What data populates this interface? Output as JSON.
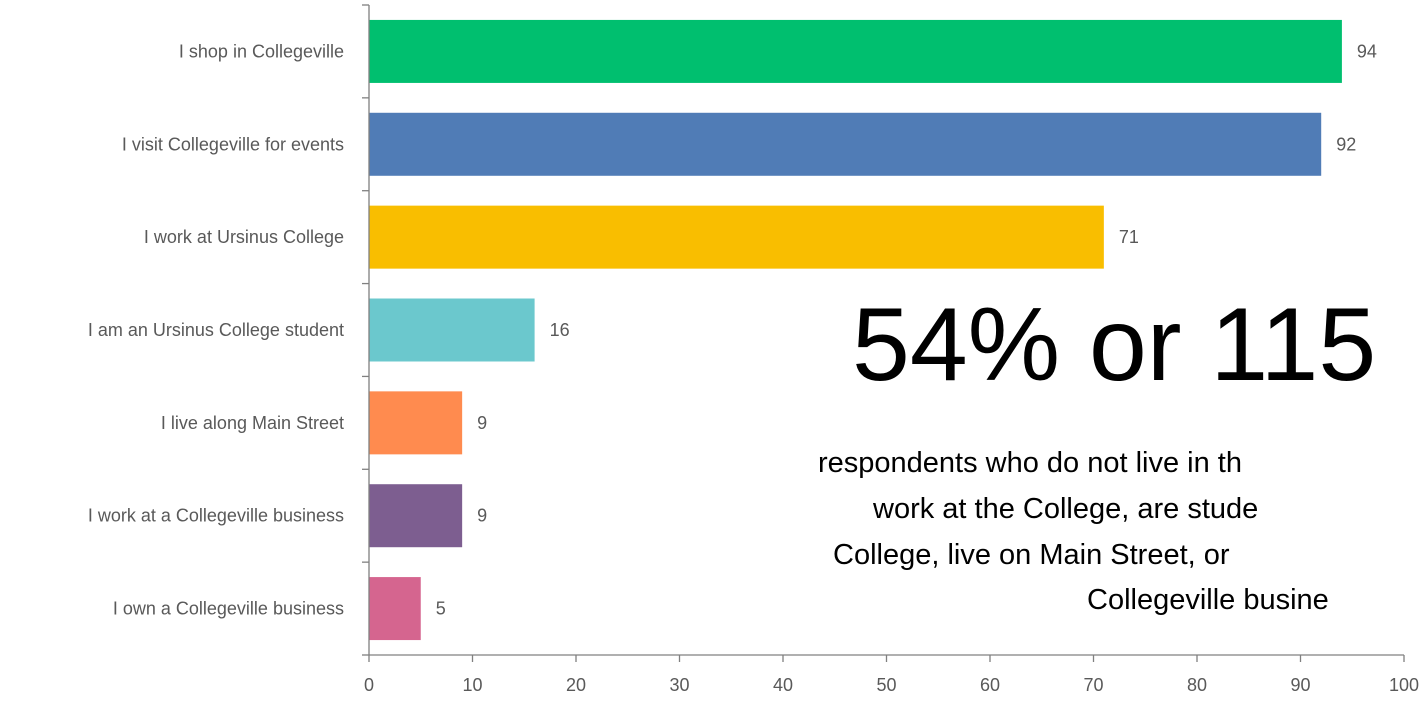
{
  "chart_data": {
    "type": "bar",
    "orientation": "horizontal",
    "categories": [
      "I shop in Collegeville",
      "I visit Collegeville for events",
      "I work at Ursinus College",
      "I am an Ursinus College student",
      "I live along Main Street",
      "I work at a Collegeville business",
      "I own a Collegeville business"
    ],
    "values": [
      94,
      92,
      71,
      16,
      9,
      9,
      5
    ],
    "colors": [
      "#00BF6F",
      "#507CB6",
      "#F9BE00",
      "#6BC8CD",
      "#FF8B4F",
      "#7D5E90",
      "#D5658F"
    ],
    "xlim": [
      0,
      100
    ],
    "xticks": [
      0,
      10,
      20,
      30,
      40,
      50,
      60,
      70,
      80,
      90,
      100
    ],
    "data_labels": true,
    "grid": false,
    "title": "",
    "xlabel": "",
    "ylabel": ""
  },
  "callout": {
    "headline": "54% or 115",
    "lines": [
      "respondents who do not live in th",
      "work at the College, are stude",
      "College, live on Main Street, or",
      "Collegeville busine"
    ]
  }
}
